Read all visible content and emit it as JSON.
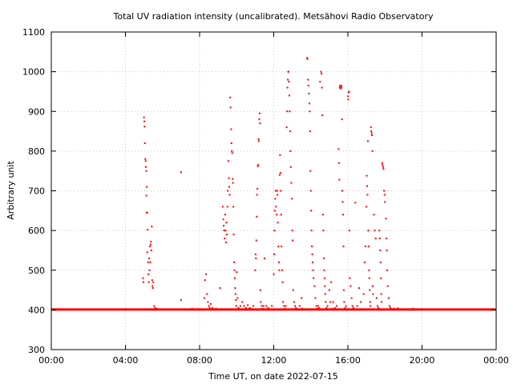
{
  "chart_data": {
    "type": "scatter",
    "title": "Total UV radiation intensity (uncalibrated). Metsähovi Radio Observatory",
    "xlabel": "Time UT, on date 2022-07-15",
    "ylabel": "Arbitrary unit",
    "xlim": [
      0,
      24
    ],
    "ylim": [
      300,
      1100
    ],
    "x_ticks": [
      0,
      4,
      8,
      12,
      16,
      20,
      24
    ],
    "x_tick_labels": [
      "00:00",
      "04:00",
      "08:00",
      "12:00",
      "16:00",
      "20:00",
      "00:00"
    ],
    "y_ticks": [
      300,
      400,
      500,
      600,
      700,
      800,
      900,
      1000,
      1100
    ],
    "y_tick_labels": [
      "300",
      "400",
      "500",
      "600",
      "700",
      "800",
      "900",
      "1000",
      "1100"
    ],
    "grid": true,
    "color": "#ff0000",
    "baseline": {
      "value": 401,
      "x_range": [
        0,
        24
      ]
    },
    "points": [
      [
        4.95,
        480
      ],
      [
        4.97,
        470
      ],
      [
        5.0,
        885
      ],
      [
        5.02,
        875
      ],
      [
        5.03,
        862
      ],
      [
        5.05,
        820
      ],
      [
        5.07,
        780
      ],
      [
        5.09,
        775
      ],
      [
        5.1,
        760
      ],
      [
        5.12,
        750
      ],
      [
        5.15,
        710
      ],
      [
        5.13,
        688
      ],
      [
        5.14,
        645
      ],
      [
        5.17,
        645
      ],
      [
        5.2,
        602
      ],
      [
        5.18,
        545
      ],
      [
        5.22,
        520
      ],
      [
        5.24,
        490
      ],
      [
        5.26,
        470
      ],
      [
        5.28,
        530
      ],
      [
        5.3,
        500
      ],
      [
        5.32,
        560
      ],
      [
        5.34,
        520
      ],
      [
        5.36,
        565
      ],
      [
        5.38,
        572
      ],
      [
        5.4,
        550
      ],
      [
        5.42,
        610
      ],
      [
        5.44,
        475
      ],
      [
        5.46,
        460
      ],
      [
        5.48,
        455
      ],
      [
        5.5,
        470
      ],
      [
        5.55,
        410
      ],
      [
        5.6,
        405
      ],
      [
        5.7,
        403
      ],
      [
        7.0,
        747
      ],
      [
        7.0,
        425
      ],
      [
        7.6,
        403
      ],
      [
        7.9,
        402
      ],
      [
        8.25,
        430
      ],
      [
        8.3,
        475
      ],
      [
        8.35,
        490
      ],
      [
        8.4,
        440
      ],
      [
        8.45,
        420
      ],
      [
        8.5,
        410
      ],
      [
        8.55,
        405
      ],
      [
        8.6,
        415
      ],
      [
        8.7,
        405
      ],
      [
        8.9,
        403
      ],
      [
        9.1,
        455
      ],
      [
        9.25,
        660
      ],
      [
        9.28,
        628
      ],
      [
        9.3,
        612
      ],
      [
        9.32,
        600
      ],
      [
        9.35,
        580
      ],
      [
        9.38,
        640
      ],
      [
        9.4,
        600
      ],
      [
        9.42,
        570
      ],
      [
        9.45,
        620
      ],
      [
        9.47,
        590
      ],
      [
        9.5,
        660
      ],
      [
        9.52,
        700
      ],
      [
        9.55,
        775
      ],
      [
        9.58,
        732
      ],
      [
        9.6,
        710
      ],
      [
        9.62,
        690
      ],
      [
        9.65,
        935
      ],
      [
        9.67,
        910
      ],
      [
        9.7,
        855
      ],
      [
        9.72,
        820
      ],
      [
        9.74,
        800
      ],
      [
        9.76,
        795
      ],
      [
        9.78,
        730
      ],
      [
        9.8,
        720
      ],
      [
        9.82,
        660
      ],
      [
        9.84,
        590
      ],
      [
        9.86,
        520
      ],
      [
        9.88,
        500
      ],
      [
        9.9,
        480
      ],
      [
        9.92,
        455
      ],
      [
        9.94,
        440
      ],
      [
        9.96,
        425
      ],
      [
        9.98,
        410
      ],
      [
        10.0,
        495
      ],
      [
        10.05,
        430
      ],
      [
        10.1,
        405
      ],
      [
        10.2,
        410
      ],
      [
        10.3,
        420
      ],
      [
        10.4,
        410
      ],
      [
        10.5,
        405
      ],
      [
        10.6,
        412
      ],
      [
        10.7,
        405
      ],
      [
        10.8,
        403
      ],
      [
        10.9,
        410
      ],
      [
        11.0,
        500
      ],
      [
        11.02,
        540
      ],
      [
        11.04,
        530
      ],
      [
        11.06,
        575
      ],
      [
        11.08,
        635
      ],
      [
        11.1,
        690
      ],
      [
        11.12,
        705
      ],
      [
        11.14,
        762
      ],
      [
        11.16,
        765
      ],
      [
        11.18,
        830
      ],
      [
        11.2,
        825
      ],
      [
        11.22,
        880
      ],
      [
        11.24,
        895
      ],
      [
        11.26,
        870
      ],
      [
        11.28,
        450
      ],
      [
        11.3,
        420
      ],
      [
        11.35,
        410
      ],
      [
        11.4,
        403
      ],
      [
        11.45,
        410
      ],
      [
        11.5,
        530
      ],
      [
        11.6,
        410
      ],
      [
        11.7,
        405
      ],
      [
        11.8,
        402
      ],
      [
        11.9,
        410
      ],
      [
        12.0,
        490
      ],
      [
        12.02,
        540
      ],
      [
        12.04,
        600
      ],
      [
        12.06,
        650
      ],
      [
        12.08,
        680
      ],
      [
        12.1,
        700
      ],
      [
        12.12,
        660
      ],
      [
        12.15,
        640
      ],
      [
        12.18,
        700
      ],
      [
        12.2,
        690
      ],
      [
        12.22,
        620
      ],
      [
        12.25,
        560
      ],
      [
        12.28,
        520
      ],
      [
        12.3,
        500
      ],
      [
        12.32,
        740
      ],
      [
        12.34,
        790
      ],
      [
        12.36,
        745
      ],
      [
        12.38,
        700
      ],
      [
        12.4,
        640
      ],
      [
        12.42,
        560
      ],
      [
        12.45,
        500
      ],
      [
        12.48,
        470
      ],
      [
        12.5,
        420
      ],
      [
        12.55,
        410
      ],
      [
        12.6,
        403
      ],
      [
        12.65,
        410
      ],
      [
        12.7,
        860
      ],
      [
        12.72,
        900
      ],
      [
        12.74,
        960
      ],
      [
        12.76,
        980
      ],
      [
        12.78,
        1000
      ],
      [
        12.8,
        1000
      ],
      [
        12.82,
        975
      ],
      [
        12.84,
        940
      ],
      [
        12.86,
        900
      ],
      [
        12.88,
        850
      ],
      [
        12.9,
        800
      ],
      [
        12.92,
        760
      ],
      [
        12.95,
        720
      ],
      [
        12.98,
        680
      ],
      [
        13.0,
        600
      ],
      [
        13.02,
        575
      ],
      [
        13.05,
        450
      ],
      [
        13.1,
        420
      ],
      [
        13.15,
        410
      ],
      [
        13.2,
        405
      ],
      [
        13.3,
        402
      ],
      [
        13.4,
        410
      ],
      [
        13.5,
        430
      ],
      [
        13.55,
        403
      ],
      [
        13.8,
        1035
      ],
      [
        13.82,
        1032
      ],
      [
        13.85,
        980
      ],
      [
        13.87,
        965
      ],
      [
        13.9,
        945
      ],
      [
        13.92,
        920
      ],
      [
        13.94,
        900
      ],
      [
        13.96,
        850
      ],
      [
        13.98,
        750
      ],
      [
        14.0,
        700
      ],
      [
        14.02,
        650
      ],
      [
        14.04,
        600
      ],
      [
        14.06,
        560
      ],
      [
        14.08,
        540
      ],
      [
        14.1,
        520
      ],
      [
        14.12,
        500
      ],
      [
        14.15,
        480
      ],
      [
        14.2,
        460
      ],
      [
        14.25,
        430
      ],
      [
        14.3,
        410
      ],
      [
        14.35,
        403
      ],
      [
        14.4,
        410
      ],
      [
        14.45,
        405
      ],
      [
        14.5,
        975
      ],
      [
        14.55,
        1000
      ],
      [
        14.58,
        995
      ],
      [
        14.6,
        960
      ],
      [
        14.62,
        890
      ],
      [
        14.65,
        640
      ],
      [
        14.68,
        600
      ],
      [
        14.7,
        530
      ],
      [
        14.72,
        500
      ],
      [
        14.74,
        480
      ],
      [
        14.76,
        460
      ],
      [
        14.78,
        440
      ],
      [
        14.8,
        420
      ],
      [
        14.85,
        405
      ],
      [
        14.9,
        410
      ],
      [
        15.0,
        450
      ],
      [
        15.05,
        420
      ],
      [
        15.1,
        470
      ],
      [
        15.15,
        403
      ],
      [
        15.2,
        420
      ],
      [
        15.3,
        405
      ],
      [
        15.4,
        410
      ],
      [
        15.5,
        805
      ],
      [
        15.52,
        770
      ],
      [
        15.54,
        728
      ],
      [
        15.56,
        960
      ],
      [
        15.58,
        965
      ],
      [
        15.6,
        958
      ],
      [
        15.62,
        963
      ],
      [
        15.64,
        965
      ],
      [
        15.66,
        960
      ],
      [
        15.68,
        880
      ],
      [
        15.7,
        700
      ],
      [
        15.72,
        672
      ],
      [
        15.74,
        640
      ],
      [
        15.76,
        560
      ],
      [
        15.78,
        450
      ],
      [
        15.8,
        420
      ],
      [
        15.85,
        405
      ],
      [
        15.9,
        410
      ],
      [
        16.0,
        938
      ],
      [
        16.02,
        930
      ],
      [
        16.04,
        948
      ],
      [
        16.06,
        950
      ],
      [
        16.08,
        600
      ],
      [
        16.1,
        480
      ],
      [
        16.15,
        460
      ],
      [
        16.2,
        430
      ],
      [
        16.25,
        410
      ],
      [
        16.3,
        405
      ],
      [
        16.4,
        670
      ],
      [
        16.5,
        410
      ],
      [
        16.6,
        455
      ],
      [
        16.7,
        420
      ],
      [
        16.8,
        402
      ],
      [
        16.85,
        440
      ],
      [
        16.9,
        520
      ],
      [
        16.95,
        560
      ],
      [
        17.0,
        660
      ],
      [
        17.02,
        738
      ],
      [
        17.04,
        712
      ],
      [
        17.06,
        690
      ],
      [
        17.08,
        825
      ],
      [
        17.1,
        600
      ],
      [
        17.12,
        560
      ],
      [
        17.14,
        500
      ],
      [
        17.16,
        480
      ],
      [
        17.18,
        450
      ],
      [
        17.2,
        420
      ],
      [
        17.22,
        410
      ],
      [
        17.24,
        860
      ],
      [
        17.26,
        850
      ],
      [
        17.28,
        845
      ],
      [
        17.3,
        840
      ],
      [
        17.32,
        800
      ],
      [
        17.34,
        460
      ],
      [
        17.36,
        440
      ],
      [
        17.4,
        640
      ],
      [
        17.45,
        600
      ],
      [
        17.5,
        580
      ],
      [
        17.55,
        430
      ],
      [
        17.6,
        410
      ],
      [
        17.65,
        405
      ],
      [
        17.7,
        600
      ],
      [
        17.72,
        580
      ],
      [
        17.74,
        550
      ],
      [
        17.76,
        520
      ],
      [
        17.78,
        480
      ],
      [
        17.8,
        440
      ],
      [
        17.82,
        420
      ],
      [
        17.85,
        770
      ],
      [
        17.87,
        765
      ],
      [
        17.9,
        760
      ],
      [
        17.92,
        755
      ],
      [
        17.95,
        700
      ],
      [
        17.98,
        690
      ],
      [
        18.0,
        672
      ],
      [
        18.05,
        630
      ],
      [
        18.08,
        580
      ],
      [
        18.1,
        550
      ],
      [
        18.12,
        500
      ],
      [
        18.15,
        460
      ],
      [
        18.2,
        430
      ],
      [
        18.25,
        410
      ],
      [
        18.3,
        405
      ],
      [
        18.4,
        402
      ],
      [
        18.5,
        403
      ],
      [
        18.7,
        404
      ],
      [
        19.0,
        402
      ],
      [
        19.5,
        403
      ]
    ]
  }
}
